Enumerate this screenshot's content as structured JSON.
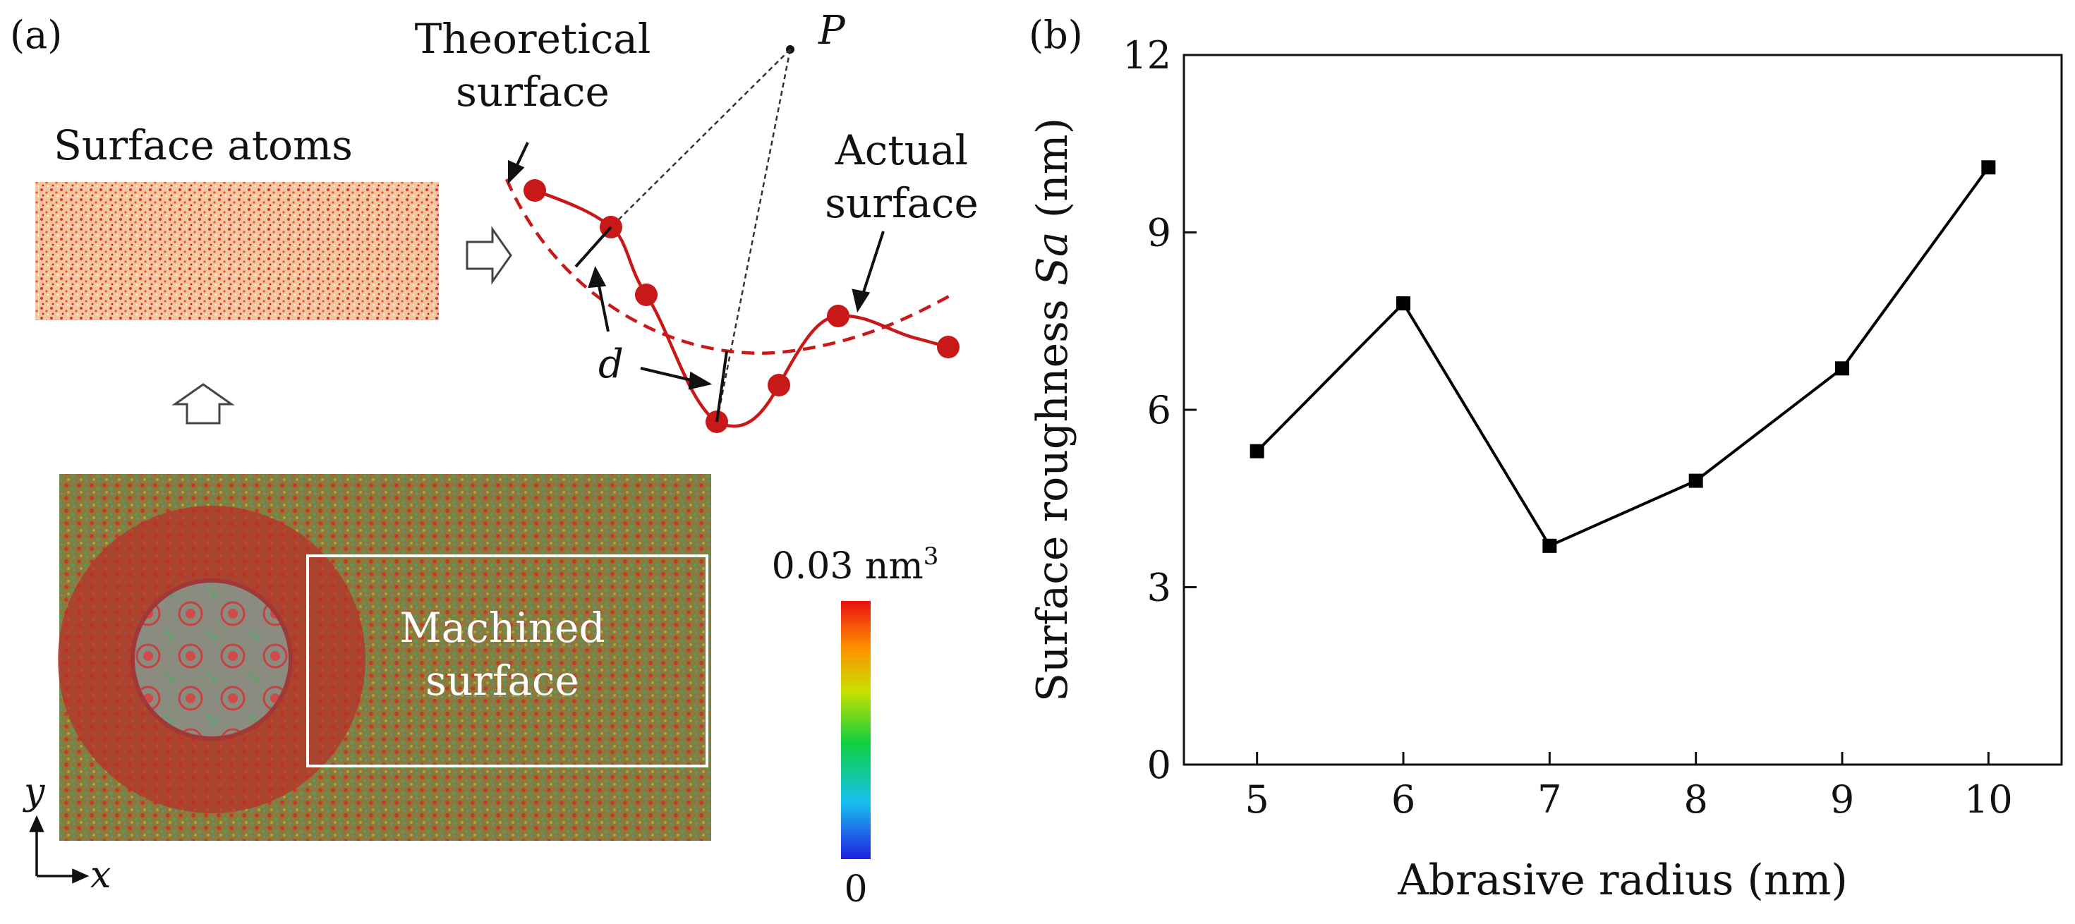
{
  "panel_a": {
    "label": "(a)",
    "surface_atoms_label": "Surface atoms",
    "theoretical_surface_label": [
      "Theoretical",
      "surface"
    ],
    "actual_surface_label": [
      "Actual",
      "surface"
    ],
    "point_label": "P",
    "distance_label": "d",
    "machined_surface_label": [
      "Machined",
      "surface"
    ],
    "colorbar": {
      "max_label": "0.03 nm",
      "max_unit_exponent": "3",
      "min_label": "0"
    },
    "axes_labels": {
      "y": "y",
      "x": "x"
    }
  },
  "chart_data": {
    "type": "line",
    "panel_label": "(b)",
    "title": "",
    "xlabel": "Abrasive radius (nm)",
    "ylabel_parts": [
      "Surface roughness ",
      "Sa",
      " (nm)"
    ],
    "x": [
      5,
      6,
      7,
      8,
      9,
      10
    ],
    "xticks": [
      5,
      6,
      7,
      8,
      9,
      10
    ],
    "xlim": [
      4.5,
      10.5
    ],
    "yticks": [
      0,
      3,
      6,
      9,
      12
    ],
    "ylim": [
      0,
      12
    ],
    "grid": false,
    "series": [
      {
        "values": [
          5.3,
          7.8,
          3.7,
          4.8,
          6.7,
          10.1
        ],
        "color": "#000000",
        "marker": "square"
      }
    ]
  }
}
